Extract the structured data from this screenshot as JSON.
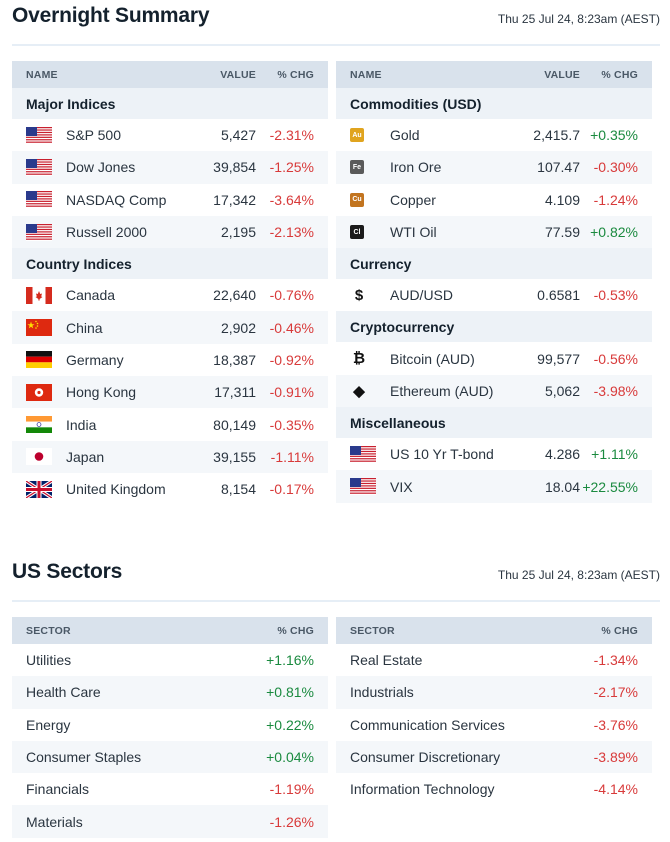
{
  "overnight": {
    "title": "Overnight Summary",
    "timestamp": "Thu 25 Jul 24, 8:23am (AEST)",
    "left_headers": {
      "name": "NAME",
      "value": "VALUE",
      "chg": "% CHG"
    },
    "right_headers": {
      "name": "NAME",
      "value": "VALUE",
      "chg": "% CHG"
    },
    "major_indices": {
      "label": "Major Indices",
      "rows": [
        {
          "name": "S&P 500",
          "value": "5,427",
          "chg": "-2.31%",
          "icon": "us-flag-icon"
        },
        {
          "name": "Dow Jones",
          "value": "39,854",
          "chg": "-1.25%",
          "icon": "us-flag-icon"
        },
        {
          "name": "NASDAQ Comp",
          "value": "17,342",
          "chg": "-3.64%",
          "icon": "us-flag-icon"
        },
        {
          "name": "Russell 2000",
          "value": "2,195",
          "chg": "-2.13%",
          "icon": "us-flag-icon"
        }
      ]
    },
    "country_indices": {
      "label": "Country Indices",
      "rows": [
        {
          "name": "Canada",
          "value": "22,640",
          "chg": "-0.76%",
          "icon": "canada-flag-icon"
        },
        {
          "name": "China",
          "value": "2,902",
          "chg": "-0.46%",
          "icon": "china-flag-icon"
        },
        {
          "name": "Germany",
          "value": "18,387",
          "chg": "-0.92%",
          "icon": "germany-flag-icon"
        },
        {
          "name": "Hong Kong",
          "value": "17,311",
          "chg": "-0.91%",
          "icon": "hong-kong-flag-icon"
        },
        {
          "name": "India",
          "value": "80,149",
          "chg": "-0.35%",
          "icon": "india-flag-icon"
        },
        {
          "name": "Japan",
          "value": "39,155",
          "chg": "-1.11%",
          "icon": "japan-flag-icon"
        },
        {
          "name": "United Kingdom",
          "value": "8,154",
          "chg": "-0.17%",
          "icon": "uk-flag-icon"
        }
      ]
    },
    "commodities": {
      "label": "Commodities (USD)",
      "rows": [
        {
          "name": "Gold",
          "value": "2,415.7",
          "chg": "+0.35%",
          "badge": "Au",
          "badge_color": "#e0a41f",
          "icon": "gold-icon"
        },
        {
          "name": "Iron Ore",
          "value": "107.47",
          "chg": "-0.30%",
          "badge": "Fe",
          "badge_color": "#5a5a5a",
          "icon": "iron-ore-icon"
        },
        {
          "name": "Copper",
          "value": "4.109",
          "chg": "-1.24%",
          "badge": "Cu",
          "badge_color": "#c2741f",
          "icon": "copper-icon"
        },
        {
          "name": "WTI Oil",
          "value": "77.59",
          "chg": "+0.82%",
          "badge": "Cl",
          "badge_color": "#1b1b1b",
          "icon": "oil-icon"
        }
      ]
    },
    "currency": {
      "label": "Currency",
      "rows": [
        {
          "name": "AUD/USD",
          "value": "0.6581",
          "chg": "-0.53%",
          "glyph": "$",
          "icon": "dollar-icon"
        }
      ]
    },
    "crypto": {
      "label": "Cryptocurrency",
      "rows": [
        {
          "name": "Bitcoin (AUD)",
          "value": "99,577",
          "chg": "-0.56%",
          "glyph": "₿",
          "icon": "bitcoin-icon"
        },
        {
          "name": "Ethereum (AUD)",
          "value": "5,062",
          "chg": "-3.98%",
          "glyph": "◆",
          "icon": "ethereum-icon"
        }
      ]
    },
    "misc": {
      "label": "Miscellaneous",
      "rows": [
        {
          "name": "US 10 Yr T-bond",
          "value": "4.286",
          "chg": "+1.11%",
          "icon": "us-flag-icon"
        },
        {
          "name": "VIX",
          "value": "18.04",
          "chg": "+22.55%",
          "icon": "us-flag-icon"
        }
      ]
    }
  },
  "sectors": {
    "title": "US Sectors",
    "timestamp": "Thu 25 Jul 24, 8:23am (AEST)",
    "headers": {
      "sector": "SECTOR",
      "chg": "% CHG"
    },
    "left": [
      {
        "name": "Utilities",
        "chg": "+1.16%"
      },
      {
        "name": "Health Care",
        "chg": "+0.81%"
      },
      {
        "name": "Energy",
        "chg": "+0.22%"
      },
      {
        "name": "Consumer Staples",
        "chg": "+0.04%"
      },
      {
        "name": "Financials",
        "chg": "-1.19%"
      },
      {
        "name": "Materials",
        "chg": "-1.26%"
      }
    ],
    "right": [
      {
        "name": "Real Estate",
        "chg": "-1.34%"
      },
      {
        "name": "Industrials",
        "chg": "-2.17%"
      },
      {
        "name": "Communication Services",
        "chg": "-3.76%"
      },
      {
        "name": "Consumer Discretionary",
        "chg": "-3.89%"
      },
      {
        "name": "Information Technology",
        "chg": "-4.14%"
      }
    ]
  },
  "colors": {
    "positive": "#1a8a3f",
    "negative": "#d83a3a",
    "header_bg": "#d9e2ec",
    "group_bg": "#edf2f7"
  }
}
